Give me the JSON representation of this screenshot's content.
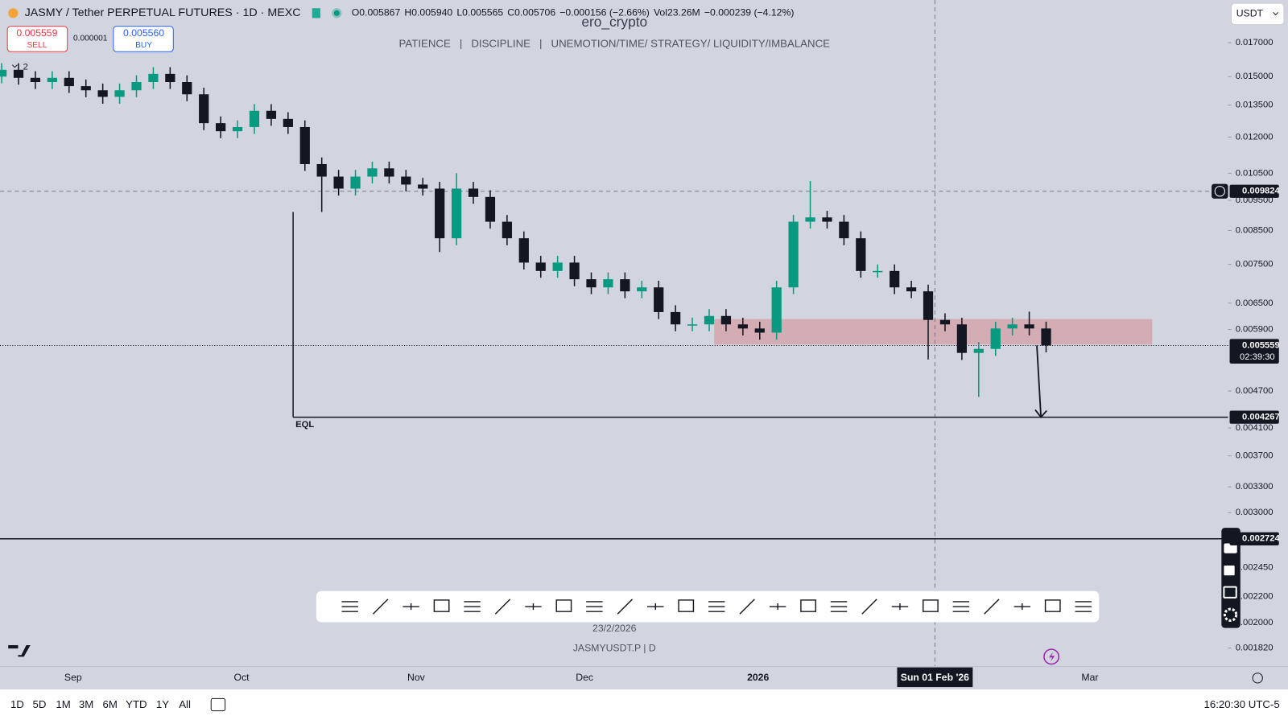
{
  "header": {
    "symbol": "JASMY / Tether PERPETUAL FUTURES · 1D · MEXC",
    "open": "O0.005867",
    "high": "H0.005940",
    "low": "L0.005565",
    "close": "C0.005706",
    "change": "−0.000156 (−2.66%)",
    "volume": "Vol23.26M",
    "volume_change": "−0.000239 (−4.12%)",
    "currency": "USDT"
  },
  "trade": {
    "sell_price": "0.005559",
    "sell": "SELL",
    "spread": "0.000001",
    "buy_price": "0.005560",
    "buy": "BUY",
    "collapsed_count": "2"
  },
  "chart_data": {
    "type": "candlestick",
    "title": "ero_crypto",
    "subtitle": "PATIENCE   |   DISCIPLINE   |   UNEMOTION/TIME/ STRATEGY/ LIQUIDITY/IMBALANCE",
    "log_scale": true,
    "up_color": "#089981",
    "down_color": "#131722",
    "ylim": [
      0.0017,
      0.0199
    ],
    "yticks": [
      {
        "value": 0.017,
        "label": "0.017000"
      },
      {
        "value": 0.015,
        "label": "0.015000"
      },
      {
        "value": 0.0135,
        "label": "0.013500"
      },
      {
        "value": 0.012,
        "label": "0.012000"
      },
      {
        "value": 0.0105,
        "label": "0.010500"
      },
      {
        "value": 0.0095,
        "label": "0.009500"
      },
      {
        "value": 0.0085,
        "label": "0.008500"
      },
      {
        "value": 0.0075,
        "label": "0.007500"
      },
      {
        "value": 0.0065,
        "label": "0.006500"
      },
      {
        "value": 0.0059,
        "label": "0.005900"
      },
      {
        "value": 0.0047,
        "label": "0.004700"
      },
      {
        "value": 0.0041,
        "label": "0.004100"
      },
      {
        "value": 0.0037,
        "label": "0.003700"
      },
      {
        "value": 0.0033,
        "label": "0.003300"
      },
      {
        "value": 0.003,
        "label": "0.003000"
      },
      {
        "value": 0.00245,
        "label": "0.002450"
      },
      {
        "value": 0.0022,
        "label": "0.002200"
      },
      {
        "value": 0.002,
        "label": "0.002000"
      },
      {
        "value": 0.00182,
        "label": "0.001820"
      }
    ],
    "xlim": [
      -0.1,
      72.8
    ],
    "xticks": [
      {
        "value": 4.24,
        "label": "Sep"
      },
      {
        "value": 14.24,
        "label": "Oct"
      },
      {
        "value": 24.6,
        "label": "Nov"
      },
      {
        "value": 34.6,
        "label": "Dec"
      },
      {
        "value": 44.9,
        "label": "2026"
      },
      {
        "value": 64.6,
        "label": "Mar"
      }
    ],
    "open": [
      0.015,
      0.01538,
      0.01493,
      0.0147,
      0.01493,
      0.01448,
      0.01426,
      0.01392,
      0.01426,
      0.0147,
      0.01515,
      0.0147,
      0.01405,
      0.01263,
      0.01226,
      0.01245,
      0.01322,
      0.01283,
      0.01245,
      0.01086,
      0.01037,
      0.00992,
      0.01037,
      0.01069,
      0.01037,
      0.01007,
      0.00992,
      0.00826,
      0.00992,
      0.00962,
      0.00878,
      0.00826,
      0.00755,
      0.00732,
      0.00755,
      0.0071,
      0.00689,
      0.0071,
      0.00679,
      0.00689,
      0.00629,
      0.00601,
      0.00601,
      0.0062,
      0.00601,
      0.00592,
      0.00583,
      0.00689,
      0.00878,
      0.00892,
      0.00878,
      0.00826,
      0.00732,
      0.00732,
      0.00689,
      0.00679,
      0.00611,
      0.00601,
      0.00541,
      0.00549,
      0.00592,
      0.00601,
      0.00592
    ],
    "high": [
      0.01576,
      0.01576,
      0.0153,
      0.0153,
      0.0153,
      0.01484,
      0.01462,
      0.01462,
      0.01507,
      0.01553,
      0.01553,
      0.01507,
      0.0144,
      0.01295,
      0.01276,
      0.01355,
      0.01355,
      0.01315,
      0.01276,
      0.01113,
      0.01063,
      0.01063,
      0.01096,
      0.01096,
      0.01063,
      0.01032,
      0.01017,
      0.0105,
      0.01017,
      0.00986,
      0.009,
      0.00847,
      0.00774,
      0.00774,
      0.00774,
      0.00728,
      0.00728,
      0.00728,
      0.00706,
      0.00706,
      0.00645,
      0.00616,
      0.00636,
      0.00636,
      0.00616,
      0.00607,
      0.00706,
      0.009,
      0.0102,
      0.00914,
      0.009,
      0.00847,
      0.0075,
      0.0075,
      0.00706,
      0.00696,
      0.00626,
      0.00616,
      0.00563,
      0.00607,
      0.00616,
      0.0063,
      0.00607
    ],
    "low": [
      0.01463,
      0.01456,
      0.01433,
      0.01433,
      0.01412,
      0.0139,
      0.01357,
      0.01357,
      0.0139,
      0.01433,
      0.01433,
      0.0137,
      0.01231,
      0.01195,
      0.01195,
      0.01214,
      0.01251,
      0.01214,
      0.01059,
      0.0091,
      0.00967,
      0.00967,
      0.01011,
      0.01011,
      0.00982,
      0.00967,
      0.00785,
      0.00805,
      0.00938,
      0.00856,
      0.00805,
      0.00736,
      0.00714,
      0.00714,
      0.00692,
      0.00672,
      0.00672,
      0.00662,
      0.00662,
      0.00613,
      0.00586,
      0.00586,
      0.00586,
      0.00586,
      0.00577,
      0.00568,
      0.00568,
      0.00672,
      0.00856,
      0.00856,
      0.00805,
      0.00714,
      0.00714,
      0.00672,
      0.00662,
      0.00528,
      0.00586,
      0.00527,
      0.0046,
      0.00535,
      0.00577,
      0.00577,
      0.00542
    ],
    "close": [
      0.01538,
      0.01493,
      0.0147,
      0.01493,
      0.01448,
      0.01426,
      0.01392,
      0.01426,
      0.0147,
      0.01515,
      0.0147,
      0.01405,
      0.01263,
      0.01226,
      0.01245,
      0.01322,
      0.01283,
      0.01245,
      0.01086,
      0.01037,
      0.00992,
      0.01037,
      0.01069,
      0.01037,
      0.01007,
      0.00992,
      0.00826,
      0.00992,
      0.00962,
      0.00878,
      0.00826,
      0.00755,
      0.00732,
      0.00755,
      0.0071,
      0.00689,
      0.0071,
      0.00679,
      0.00689,
      0.00629,
      0.00601,
      0.00601,
      0.0062,
      0.00601,
      0.00592,
      0.00583,
      0.00689,
      0.00878,
      0.00892,
      0.00878,
      0.00826,
      0.00732,
      0.00732,
      0.00689,
      0.00679,
      0.00611,
      0.00601,
      0.00541,
      0.00549,
      0.00592,
      0.00601,
      0.00592,
      0.00556
    ],
    "crosshair": {
      "price": 0.009824,
      "date": {
        "value": 55.4,
        "label": "Sun 01 Feb '26"
      }
    },
    "last_price": 0.005559,
    "countdown": "02:39:30",
    "zone": {
      "x": [
        42.3,
        68.3
      ],
      "price": [
        0.00558,
        0.00613
      ],
      "color": "#d4a4ad"
    },
    "eql": {
      "label": "EQL",
      "price": 0.004267,
      "start": 17.3,
      "top": 0.0091
    },
    "arrow": {
      "x": 61.5,
      "from": 0.00556
    },
    "hline": 0.002724,
    "footer_date": "23/2/2026",
    "footer_symbol": "JASMYUSDT.P | D"
  },
  "bottom_bar": {
    "ranges": [
      "1D",
      "5D",
      "1M",
      "3M",
      "6M",
      "YTD",
      "1Y",
      "All"
    ],
    "clock": "16:20:30 UTC-5"
  }
}
